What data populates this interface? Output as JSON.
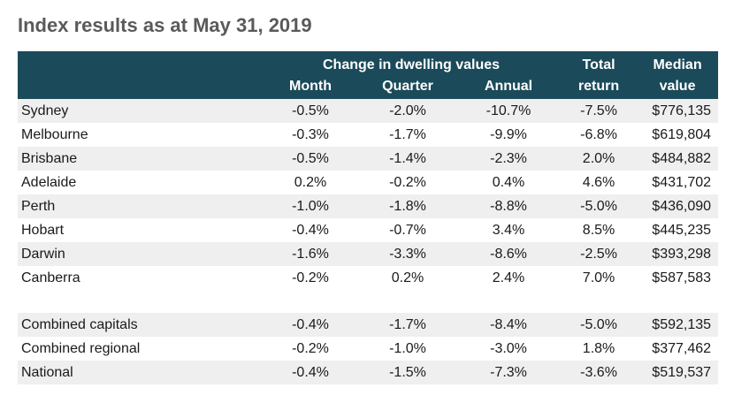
{
  "title": "Index results as at May 31, 2019",
  "header": {
    "group_label": "Change in dwelling values",
    "month": "Month",
    "quarter": "Quarter",
    "annual": "Annual",
    "total_line1": "Total",
    "total_line2": "return",
    "median_line1": "Median",
    "median_line2": "value"
  },
  "rows": [
    {
      "name": "Sydney",
      "month": "-0.5%",
      "quarter": "-2.0%",
      "annual": "-10.7%",
      "total": "-7.5%",
      "median": "$776,135"
    },
    {
      "name": "Melbourne",
      "month": "-0.3%",
      "quarter": "-1.7%",
      "annual": "-9.9%",
      "total": "-6.8%",
      "median": "$619,804"
    },
    {
      "name": "Brisbane",
      "month": "-0.5%",
      "quarter": "-1.4%",
      "annual": "-2.3%",
      "total": "2.0%",
      "median": "$484,882"
    },
    {
      "name": "Adelaide",
      "month": "0.2%",
      "quarter": "-0.2%",
      "annual": "0.4%",
      "total": "4.6%",
      "median": "$431,702"
    },
    {
      "name": "Perth",
      "month": "-1.0%",
      "quarter": "-1.8%",
      "annual": "-8.8%",
      "total": "-5.0%",
      "median": "$436,090"
    },
    {
      "name": "Hobart",
      "month": "-0.4%",
      "quarter": "-0.7%",
      "annual": "3.4%",
      "total": "8.5%",
      "median": "$445,235"
    },
    {
      "name": "Darwin",
      "month": "-1.6%",
      "quarter": "-3.3%",
      "annual": "-8.6%",
      "total": "-2.5%",
      "median": "$393,298"
    },
    {
      "name": "Canberra",
      "month": "-0.2%",
      "quarter": "0.2%",
      "annual": "2.4%",
      "total": "7.0%",
      "median": "$587,583"
    }
  ],
  "summary_rows": [
    {
      "name": "Combined capitals",
      "month": "-0.4%",
      "quarter": "-1.7%",
      "annual": "-8.4%",
      "total": "-5.0%",
      "median": "$592,135"
    },
    {
      "name": "Combined regional",
      "month": "-0.2%",
      "quarter": "-1.0%",
      "annual": "-3.0%",
      "total": "1.8%",
      "median": "$377,462"
    },
    {
      "name": "National",
      "month": "-0.4%",
      "quarter": "-1.5%",
      "annual": "-7.3%",
      "total": "-3.6%",
      "median": "$519,537"
    }
  ],
  "colors": {
    "header_bg": "#1b4a5a",
    "shade": "#efefef",
    "title": "#5a5a5a"
  }
}
